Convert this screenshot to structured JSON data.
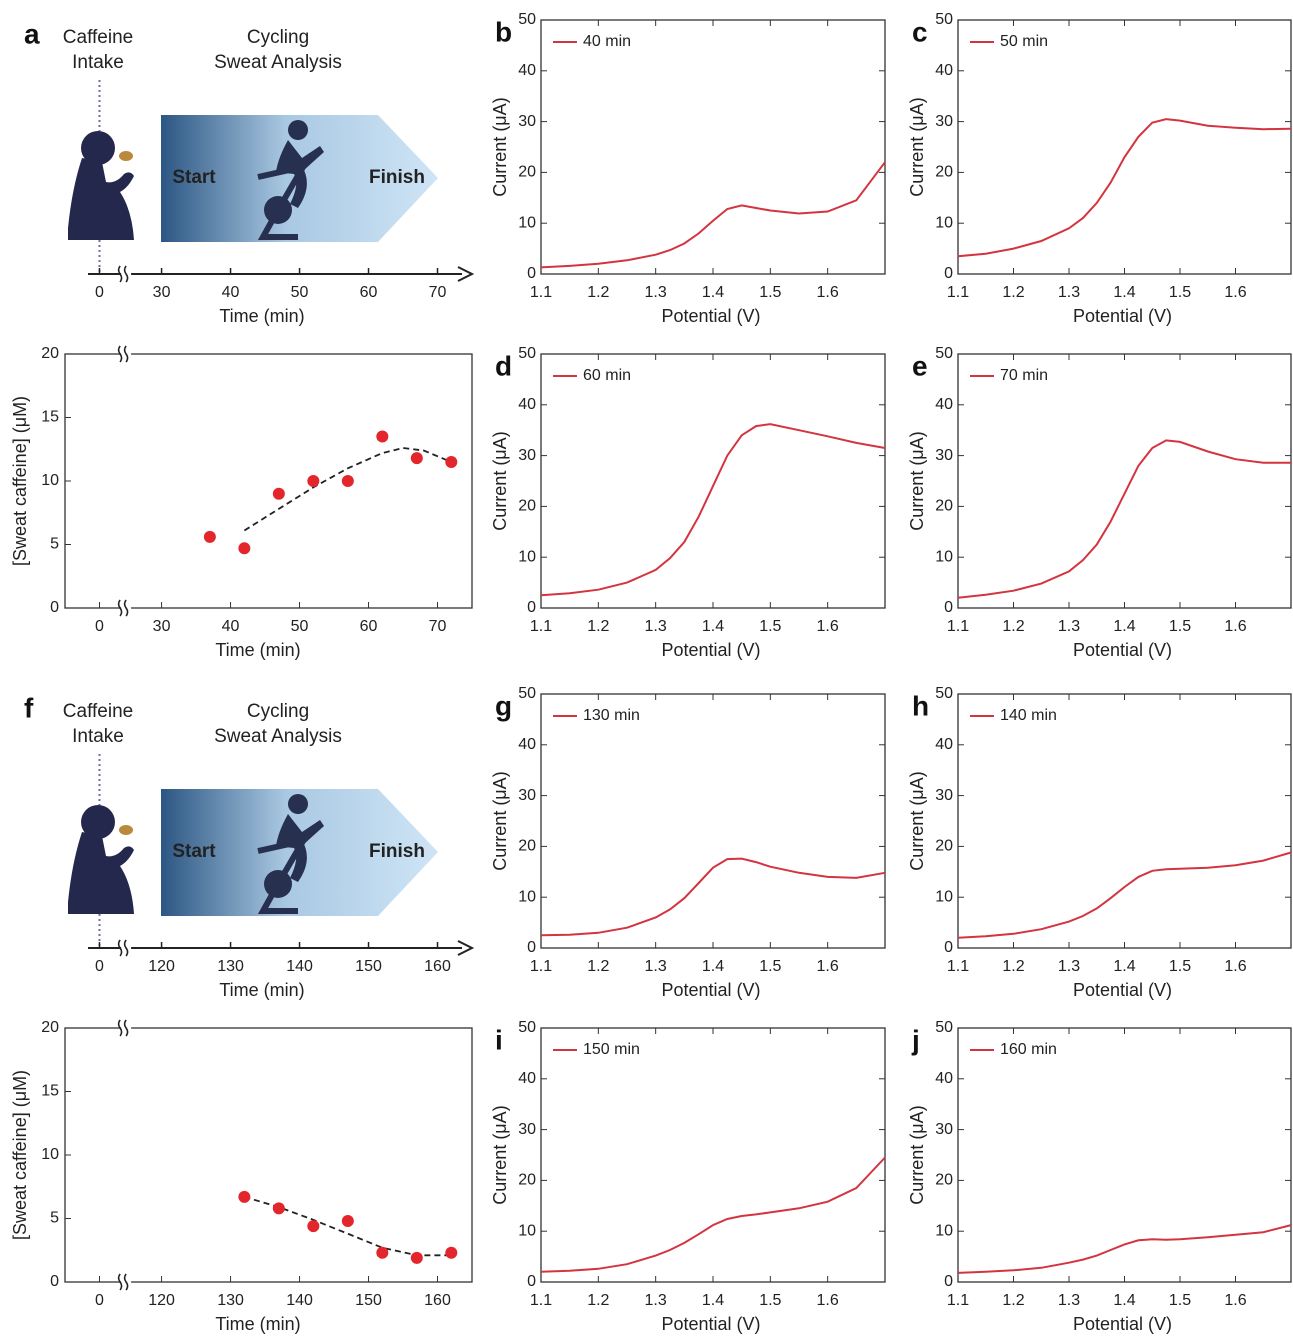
{
  "chart_data": [
    {
      "type": "timeline",
      "panel": "a",
      "intake_label": [
        "Caffeine",
        "Intake"
      ],
      "activity_label": [
        "Cycling",
        "Sweat Analysis"
      ],
      "start_label": "Start",
      "finish_label": "Finish",
      "xlabel": "Time (min)",
      "xlim": [
        -5,
        75
      ],
      "xbreak": [
        4,
        25
      ],
      "xticks": [
        0,
        30,
        40,
        50,
        60,
        70
      ]
    },
    {
      "type": "scatter",
      "xlabel": "Time (min)",
      "ylabel": "[Sweat caffeine] (μM)",
      "xlim": [
        -5,
        75
      ],
      "xbreak": [
        4,
        25
      ],
      "xticks": [
        0,
        30,
        40,
        50,
        60,
        70
      ],
      "ylim": [
        0,
        20
      ],
      "yticks": [
        0,
        5,
        10,
        15,
        20
      ],
      "series": [
        {
          "mode": "markers",
          "color": "#e3262b",
          "x": [
            37,
            42,
            47,
            52,
            57,
            62,
            67,
            72
          ],
          "values": [
            5.6,
            4.7,
            9,
            10,
            10,
            13.5,
            11.8,
            11.5
          ]
        },
        {
          "mode": "line",
          "dash": true,
          "color": "#222222",
          "x": [
            42,
            47,
            52,
            57,
            62,
            65,
            68,
            72
          ],
          "values": [
            6.1,
            7.8,
            9.5,
            11,
            12.2,
            12.6,
            12.4,
            11.5
          ]
        }
      ]
    },
    {
      "type": "line",
      "panel": "b",
      "xlabel": "Potential (V)",
      "ylabel": "Current (μA)",
      "xlim": [
        1.1,
        1.7
      ],
      "ylim": [
        0,
        50
      ],
      "xticks": [
        1.1,
        1.2,
        1.3,
        1.4,
        1.5,
        1.6
      ],
      "yticks": [
        0,
        10,
        20,
        30,
        40,
        50
      ],
      "x": [
        1.1,
        1.15,
        1.2,
        1.25,
        1.3,
        1.325,
        1.35,
        1.375,
        1.4,
        1.425,
        1.45,
        1.475,
        1.5,
        1.55,
        1.6,
        1.65,
        1.7
      ],
      "series": [
        {
          "name": "40 min",
          "color": "#d4343f",
          "values": [
            1.3,
            1.6,
            2.0,
            2.7,
            3.8,
            4.7,
            6.0,
            8.0,
            10.5,
            12.8,
            13.5,
            13.0,
            12.5,
            11.9,
            12.3,
            14.5,
            22
          ]
        }
      ]
    },
    {
      "type": "line",
      "panel": "c",
      "xlabel": "Potential (V)",
      "ylabel": "Current (μA)",
      "xlim": [
        1.1,
        1.7
      ],
      "ylim": [
        0,
        50
      ],
      "xticks": [
        1.1,
        1.2,
        1.3,
        1.4,
        1.5,
        1.6
      ],
      "yticks": [
        0,
        10,
        20,
        30,
        40,
        50
      ],
      "x": [
        1.1,
        1.15,
        1.2,
        1.25,
        1.3,
        1.325,
        1.35,
        1.375,
        1.4,
        1.425,
        1.45,
        1.475,
        1.5,
        1.55,
        1.6,
        1.65,
        1.7
      ],
      "series": [
        {
          "name": "50 min",
          "color": "#d4343f",
          "values": [
            3.5,
            4.0,
            5.0,
            6.5,
            9.0,
            11,
            14,
            18,
            23,
            27,
            29.8,
            30.5,
            30.2,
            29.2,
            28.8,
            28.5,
            28.6
          ]
        }
      ]
    },
    {
      "type": "line",
      "panel": "d",
      "xlabel": "Potential (V)",
      "ylabel": "Current (μA)",
      "xlim": [
        1.1,
        1.7
      ],
      "ylim": [
        0,
        50
      ],
      "xticks": [
        1.1,
        1.2,
        1.3,
        1.4,
        1.5,
        1.6
      ],
      "yticks": [
        0,
        10,
        20,
        30,
        40,
        50
      ],
      "x": [
        1.1,
        1.15,
        1.2,
        1.25,
        1.3,
        1.325,
        1.35,
        1.375,
        1.4,
        1.425,
        1.45,
        1.475,
        1.5,
        1.55,
        1.6,
        1.65,
        1.7
      ],
      "series": [
        {
          "name": "60 min",
          "color": "#d4343f",
          "values": [
            2.5,
            2.9,
            3.6,
            5.0,
            7.5,
            9.8,
            13,
            18,
            24,
            30,
            34,
            35.8,
            36.2,
            35,
            33.8,
            32.5,
            31.5
          ]
        }
      ]
    },
    {
      "type": "line",
      "panel": "e",
      "xlabel": "Potential (V)",
      "ylabel": "Current (μA)",
      "xlim": [
        1.1,
        1.7
      ],
      "ylim": [
        0,
        50
      ],
      "xticks": [
        1.1,
        1.2,
        1.3,
        1.4,
        1.5,
        1.6
      ],
      "yticks": [
        0,
        10,
        20,
        30,
        40,
        50
      ],
      "x": [
        1.1,
        1.15,
        1.2,
        1.25,
        1.3,
        1.325,
        1.35,
        1.375,
        1.4,
        1.425,
        1.45,
        1.475,
        1.5,
        1.55,
        1.6,
        1.65,
        1.7
      ],
      "series": [
        {
          "name": "70 min",
          "color": "#d4343f",
          "values": [
            2.0,
            2.6,
            3.4,
            4.8,
            7.2,
            9.4,
            12.5,
            17,
            22.5,
            28,
            31.5,
            33,
            32.7,
            30.8,
            29.3,
            28.6,
            28.6
          ]
        }
      ]
    },
    {
      "type": "timeline",
      "panel": "f",
      "intake_label": [
        "Caffeine",
        "Intake"
      ],
      "activity_label": [
        "Cycling",
        "Sweat Analysis"
      ],
      "start_label": "Start",
      "finish_label": "Finish",
      "xlabel": "Time (min)",
      "xlim": [
        -5,
        165
      ],
      "xbreak": [
        4,
        115
      ],
      "xticks": [
        0,
        120,
        130,
        140,
        150,
        160
      ]
    },
    {
      "type": "scatter",
      "xlabel": "Time (min)",
      "ylabel": "[Sweat caffeine] (μM)",
      "xlim": [
        -5,
        165
      ],
      "xbreak": [
        4,
        115
      ],
      "xticks": [
        0,
        120,
        130,
        140,
        150,
        160
      ],
      "ylim": [
        0,
        20
      ],
      "yticks": [
        0,
        5,
        10,
        15,
        20
      ],
      "series": [
        {
          "mode": "markers",
          "color": "#e3262b",
          "x": [
            132,
            137,
            142,
            147,
            152,
            157,
            162
          ],
          "values": [
            6.7,
            5.8,
            4.4,
            4.8,
            2.3,
            1.9,
            2.3
          ]
        },
        {
          "mode": "line",
          "dash": true,
          "color": "#222222",
          "x": [
            132,
            137,
            142,
            147,
            152,
            157,
            162
          ],
          "values": [
            6.7,
            5.9,
            4.9,
            3.8,
            2.7,
            2.1,
            2.1
          ]
        }
      ]
    },
    {
      "type": "line",
      "panel": "g",
      "xlabel": "Potential (V)",
      "ylabel": "Current (μA)",
      "xlim": [
        1.1,
        1.7
      ],
      "ylim": [
        0,
        50
      ],
      "xticks": [
        1.1,
        1.2,
        1.3,
        1.4,
        1.5,
        1.6
      ],
      "yticks": [
        0,
        10,
        20,
        30,
        40,
        50
      ],
      "x": [
        1.1,
        1.15,
        1.2,
        1.25,
        1.3,
        1.325,
        1.35,
        1.375,
        1.4,
        1.425,
        1.45,
        1.475,
        1.5,
        1.55,
        1.6,
        1.65,
        1.7
      ],
      "series": [
        {
          "name": "130 min",
          "color": "#d4343f",
          "values": [
            2.5,
            2.6,
            3.0,
            4.0,
            6.0,
            7.6,
            9.8,
            12.8,
            15.8,
            17.5,
            17.6,
            16.9,
            16.0,
            14.8,
            14.0,
            13.8,
            14.8
          ]
        }
      ]
    },
    {
      "type": "line",
      "panel": "h",
      "xlabel": "Potential (V)",
      "ylabel": "Current (μA)",
      "xlim": [
        1.1,
        1.7
      ],
      "ylim": [
        0,
        50
      ],
      "xticks": [
        1.1,
        1.2,
        1.3,
        1.4,
        1.5,
        1.6
      ],
      "yticks": [
        0,
        10,
        20,
        30,
        40,
        50
      ],
      "x": [
        1.1,
        1.15,
        1.2,
        1.25,
        1.3,
        1.325,
        1.35,
        1.375,
        1.4,
        1.425,
        1.45,
        1.475,
        1.5,
        1.55,
        1.6,
        1.65,
        1.7
      ],
      "series": [
        {
          "name": "140 min",
          "color": "#d4343f",
          "values": [
            2.0,
            2.3,
            2.8,
            3.7,
            5.2,
            6.3,
            7.8,
            9.8,
            12,
            14,
            15.2,
            15.5,
            15.6,
            15.8,
            16.3,
            17.2,
            18.8
          ]
        }
      ]
    },
    {
      "type": "line",
      "panel": "i",
      "xlabel": "Potential (V)",
      "ylabel": "Current (μA)",
      "xlim": [
        1.1,
        1.7
      ],
      "ylim": [
        0,
        50
      ],
      "xticks": [
        1.1,
        1.2,
        1.3,
        1.4,
        1.5,
        1.6
      ],
      "yticks": [
        0,
        10,
        20,
        30,
        40,
        50
      ],
      "x": [
        1.1,
        1.15,
        1.2,
        1.25,
        1.3,
        1.325,
        1.35,
        1.375,
        1.4,
        1.425,
        1.45,
        1.475,
        1.5,
        1.55,
        1.6,
        1.65,
        1.7
      ],
      "series": [
        {
          "name": "150 min",
          "color": "#d4343f",
          "values": [
            2.0,
            2.2,
            2.6,
            3.5,
            5.2,
            6.3,
            7.7,
            9.4,
            11.2,
            12.4,
            13,
            13.3,
            13.7,
            14.5,
            15.8,
            18.5,
            24.5
          ]
        }
      ]
    },
    {
      "type": "line",
      "panel": "j",
      "xlabel": "Potential (V)",
      "ylabel": "Current (μA)",
      "xlim": [
        1.1,
        1.7
      ],
      "ylim": [
        0,
        50
      ],
      "xticks": [
        1.1,
        1.2,
        1.3,
        1.4,
        1.5,
        1.6
      ],
      "yticks": [
        0,
        10,
        20,
        30,
        40,
        50
      ],
      "x": [
        1.1,
        1.15,
        1.2,
        1.25,
        1.3,
        1.325,
        1.35,
        1.375,
        1.4,
        1.425,
        1.45,
        1.475,
        1.5,
        1.55,
        1.6,
        1.65,
        1.7
      ],
      "series": [
        {
          "name": "160 min",
          "color": "#d4343f",
          "values": [
            1.8,
            2.0,
            2.3,
            2.8,
            3.8,
            4.4,
            5.2,
            6.3,
            7.4,
            8.2,
            8.4,
            8.3,
            8.4,
            8.8,
            9.3,
            9.8,
            11.2
          ]
        }
      ]
    }
  ]
}
